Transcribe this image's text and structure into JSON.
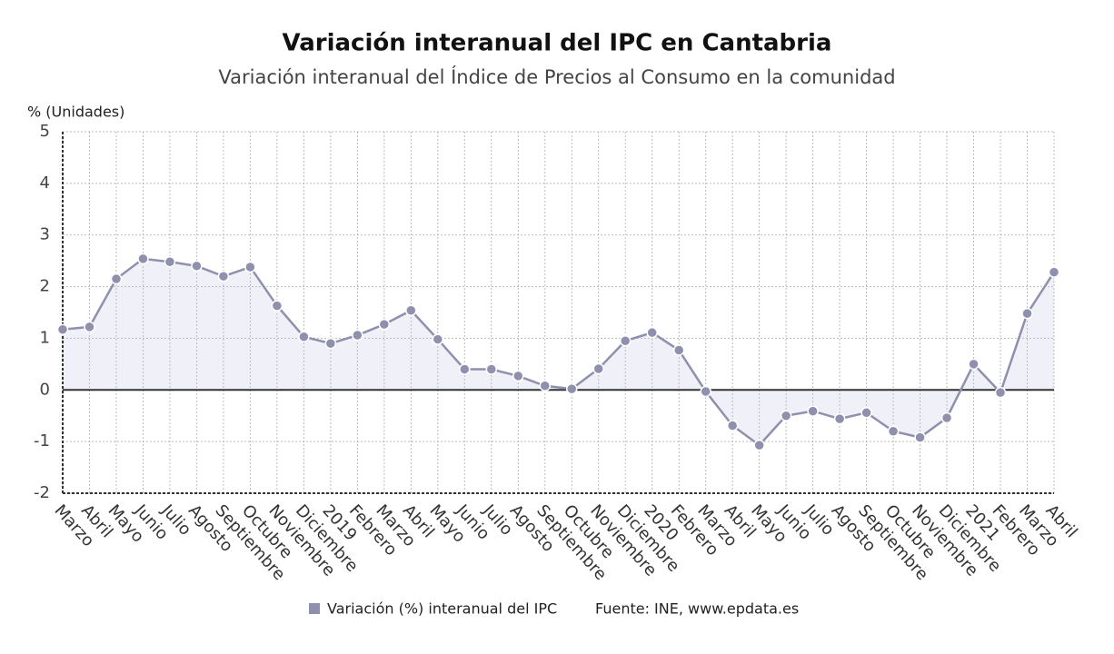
{
  "chart_data": {
    "type": "line",
    "title": "Variación interanual del IPC en Cantabria",
    "subtitle": "Variación interanual del Índice de Precios al Consumo en la comunidad",
    "y_label": "% (Unidades)",
    "source": "Fuente: INE, www.epdata.es",
    "categories": [
      "Marzo",
      "Abril",
      "Mayo",
      "Junio",
      "Julio",
      "Agosto",
      "Septiembre",
      "Octubre",
      "Noviembre",
      "Diciembre",
      "2019",
      "Febrero",
      "Marzo",
      "Abril",
      "Mayo",
      "Junio",
      "Julio",
      "Agosto",
      "Septiembre",
      "Octubre",
      "Noviembre",
      "Diciembre",
      "2020",
      "Febrero",
      "Marzo",
      "Abril",
      "Mayo",
      "Junio",
      "Julio",
      "Agosto",
      "Septiembre",
      "Octubre",
      "Noviembre",
      "Diciembre",
      "2021",
      "Febrero",
      "Marzo",
      "Abril"
    ],
    "series": [
      {
        "name": "Variación (%) interanual del IPC",
        "color": "#8e90ad",
        "values": [
          1.17,
          1.22,
          2.15,
          2.54,
          2.48,
          2.4,
          2.2,
          2.38,
          1.63,
          1.03,
          0.9,
          1.06,
          1.27,
          1.54,
          0.98,
          0.4,
          0.4,
          0.27,
          0.08,
          0.02,
          0.41,
          0.95,
          1.11,
          0.77,
          -0.03,
          -0.69,
          -1.07,
          -0.5,
          -0.41,
          -0.56,
          -0.44,
          -0.8,
          -0.92,
          -0.54,
          0.5,
          -0.05,
          1.48,
          2.28
        ]
      }
    ],
    "ylim": [
      -2,
      5
    ],
    "yticks": [
      -2,
      -1,
      0,
      1,
      2,
      3,
      4,
      5
    ],
    "grid": true
  }
}
